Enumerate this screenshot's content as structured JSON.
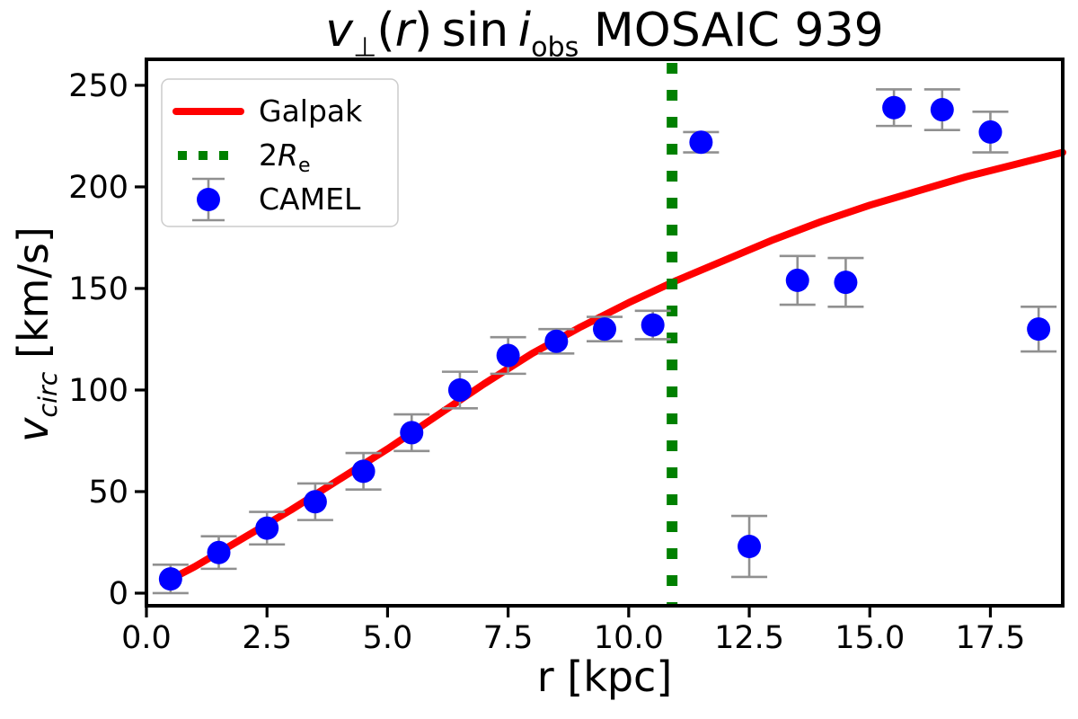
{
  "chart_data": {
    "type": "scatter",
    "title": "v⊥(r) sin i_obs MOSAIC 939",
    "xlabel": "r [kpc]",
    "ylabel": "v_circ [km/s]",
    "xlim": [
      0,
      19.0
    ],
    "ylim": [
      -6.2,
      262.8
    ],
    "grid": false,
    "x_ticks": [
      0.0,
      2.5,
      5.0,
      7.5,
      10.0,
      12.5,
      15.0,
      17.5
    ],
    "x_tick_labels": [
      "0.0",
      "2.5",
      "5.0",
      "7.5",
      "10.0",
      "12.5",
      "15.0",
      "17.5"
    ],
    "y_ticks": [
      0,
      50,
      100,
      150,
      200,
      250
    ],
    "y_tick_labels": [
      "0",
      "50",
      "100",
      "150",
      "200",
      "250"
    ],
    "legend": {
      "position": "upper left",
      "items": [
        {
          "label": "Galpak",
          "type": "line",
          "color": "#ff0000"
        },
        {
          "label": "2Re",
          "label_parts": {
            "pre": "2",
            "it": "R",
            "sub": "e"
          },
          "type": "dotted",
          "color": "#008000"
        },
        {
          "label": "CAMEL",
          "type": "marker",
          "color": "#0000ff"
        }
      ]
    },
    "series": [
      {
        "name": "Galpak",
        "type": "line",
        "color": "#ff0000",
        "linewidth": 8,
        "x": [
          0.35,
          1,
          2,
          3,
          4,
          5,
          6,
          7,
          8,
          9,
          10,
          11,
          12,
          13,
          14,
          15,
          16,
          17,
          18,
          19
        ],
        "y": [
          5,
          13,
          27,
          41,
          56,
          71,
          87,
          103,
          118,
          131,
          143,
          154,
          164,
          174,
          183,
          191,
          198,
          205,
          211,
          217
        ]
      },
      {
        "name": "2Re",
        "type": "vline",
        "color": "#008000",
        "x": 10.9,
        "style": "dotted"
      },
      {
        "name": "CAMEL",
        "type": "scatter",
        "color": "#0000ff",
        "marker": "o",
        "error_color": "#909090",
        "x": [
          0.5,
          1.5,
          2.5,
          3.5,
          4.5,
          5.5,
          6.5,
          7.5,
          8.5,
          9.5,
          10.5,
          11.5,
          12.5,
          13.5,
          14.5,
          15.5,
          16.5,
          17.5,
          18.5
        ],
        "y": [
          7,
          20,
          32,
          45,
          60,
          79,
          100,
          117,
          124,
          130,
          132,
          222,
          23,
          154,
          153,
          239,
          238,
          227,
          130
        ],
        "yerr": [
          7,
          8,
          8,
          9,
          9,
          9,
          9,
          9,
          6,
          6,
          7,
          5,
          15,
          12,
          12,
          9,
          10,
          10,
          11
        ]
      }
    ]
  },
  "title_parts": {
    "v": "v",
    "perp": "⊥",
    "open": "(",
    "r": "r",
    "close": ")",
    "sin": "sin",
    "i": "i",
    "obs": "obs",
    "rest": " MOSAIC 939"
  },
  "ylabel_parts": {
    "v": "v",
    "sub": "circ",
    "unit": " [km/s]"
  },
  "xlabel_text": "r [kpc]"
}
